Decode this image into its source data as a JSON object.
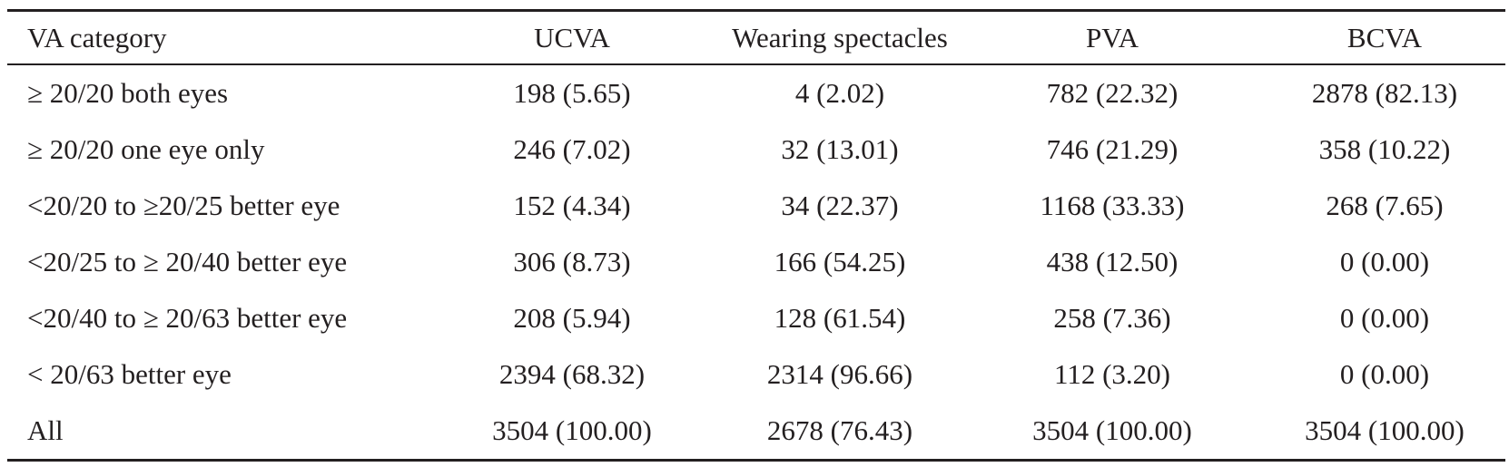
{
  "table": {
    "headers": [
      "VA category",
      "UCVA",
      "Wearing spectacles",
      "PVA",
      "BCVA"
    ],
    "rows": [
      [
        "≥ 20/20 both eyes",
        "198 (5.65)",
        "4 (2.02)",
        "782 (22.32)",
        "2878 (82.13)"
      ],
      [
        "≥ 20/20 one eye only",
        "246 (7.02)",
        "32 (13.01)",
        "746 (21.29)",
        "358 (10.22)"
      ],
      [
        "<20/20 to ≥20/25 better eye",
        "152 (4.34)",
        "34 (22.37)",
        "1168 (33.33)",
        "268 (7.65)"
      ],
      [
        "<20/25 to ≥ 20/40 better eye",
        "306 (8.73)",
        "166 (54.25)",
        "438 (12.50)",
        "0 (0.00)"
      ],
      [
        "<20/40 to ≥ 20/63 better eye",
        "208 (5.94)",
        "128 (61.54)",
        "258 (7.36)",
        "0 (0.00)"
      ],
      [
        "< 20/63 better eye",
        "2394 (68.32)",
        "2314 (96.66)",
        "112 (3.20)",
        "0 (0.00)"
      ],
      [
        "All",
        "3504 (100.00)",
        "2678 (76.43)",
        "3504 (100.00)",
        "3504 (100.00)"
      ]
    ]
  }
}
